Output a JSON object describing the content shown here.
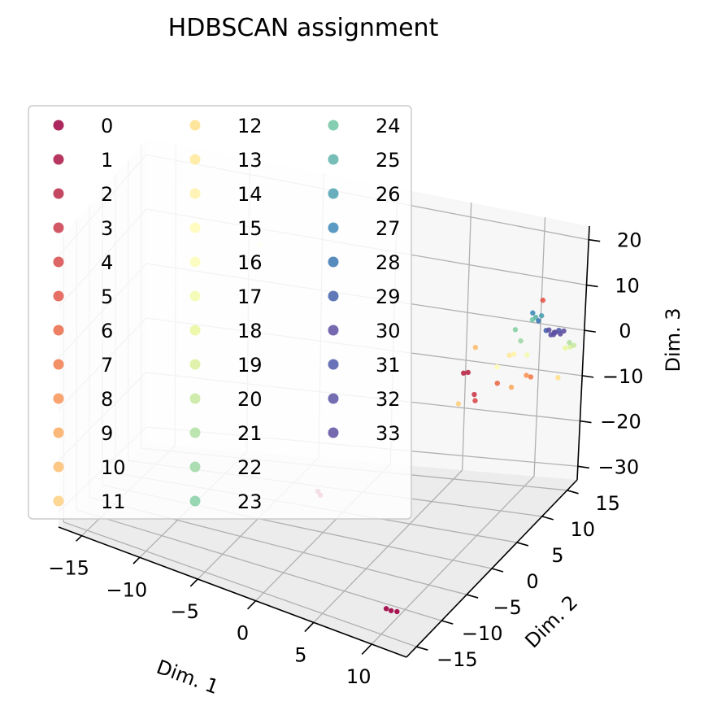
{
  "chart_data": {
    "type": "scatter",
    "projection": "3d",
    "title": "HDBSCAN assignment",
    "xlabel": "Dim. 1",
    "ylabel": "Dim. 2",
    "zlabel": "Dim. 3",
    "x_ticks": [
      "−15",
      "−10",
      "−5",
      "0",
      "5",
      "10"
    ],
    "y_ticks": [
      "−15",
      "−10",
      "−5",
      "0",
      "5",
      "10",
      "15"
    ],
    "z_ticks": [
      "−30",
      "−20",
      "−10",
      "0",
      "10",
      "20"
    ],
    "grid": true,
    "legend_placement": "upper-left",
    "legend_columns": 3,
    "colormap": "Spectral",
    "legend": [
      "0",
      "1",
      "2",
      "3",
      "4",
      "5",
      "6",
      "7",
      "8",
      "9",
      "10",
      "11",
      "12",
      "13",
      "14",
      "15",
      "16",
      "17",
      "18",
      "19",
      "20",
      "21",
      "22",
      "23",
      "24",
      "25",
      "26",
      "27",
      "28",
      "29",
      "30",
      "31",
      "32",
      "33"
    ],
    "colors": [
      "#9e0142",
      "#ac1445",
      "#bb2848",
      "#ca3b4b",
      "#d84a4b",
      "#e2574a",
      "#ea6848",
      "#f27d4c",
      "#f89456",
      "#fbaa63",
      "#fdbe70",
      "#fdd080",
      "#fee08b",
      "#fee999",
      "#fff2a8",
      "#fffab6",
      "#fbfdb9",
      "#f3faac",
      "#eaf79f",
      "#dbf19d",
      "#c7e99e",
      "#b2e0a2",
      "#9dd7a4",
      "#87cfa4",
      "#71c5a5",
      "#5fb3ab",
      "#4da0b1",
      "#3e8ab8",
      "#3a76b1",
      "#4463ab",
      "#5e4fa2",
      "#4f5aaa",
      "#5b54a4",
      "#5e4fa2"
    ],
    "points": [
      {
        "x": 10.5,
        "y": -14.5,
        "z": -28,
        "cluster": 0
      },
      {
        "x": 10.8,
        "y": -14.0,
        "z": -28.5,
        "cluster": 0
      },
      {
        "x": 10.2,
        "y": -14.8,
        "z": -27.5,
        "cluster": 0
      },
      {
        "x": 2.0,
        "y": -10.0,
        "z": -15,
        "cluster": 1
      },
      {
        "x": 2.3,
        "y": -10.2,
        "z": -15.3,
        "cluster": 1
      },
      {
        "x": 9.0,
        "y": 2.0,
        "z": 4,
        "cluster": 2
      },
      {
        "x": 9.3,
        "y": 2.2,
        "z": 4.2,
        "cluster": 2
      },
      {
        "x": 10.2,
        "y": 1.5,
        "z": 1,
        "cluster": 3
      },
      {
        "x": 10.5,
        "y": 1.0,
        "z": 0.5,
        "cluster": 4
      },
      {
        "x": 13.0,
        "y": 8.0,
        "z": 17,
        "cluster": 5
      },
      {
        "x": 11.5,
        "y": 3.0,
        "z": 3,
        "cluster": 6
      },
      {
        "x": 13.5,
        "y": 5.0,
        "z": 4,
        "cluster": 7
      },
      {
        "x": 13.2,
        "y": 4.8,
        "z": 4.3,
        "cluster": 8
      },
      {
        "x": 12.5,
        "y": 3.5,
        "z": 2.5,
        "cluster": 9
      },
      {
        "x": 9.5,
        "y": 3.0,
        "z": 9,
        "cluster": 10
      },
      {
        "x": 9.5,
        "y": 0.0,
        "z": 0,
        "cluster": 11
      },
      {
        "x": 15.0,
        "y": 7.0,
        "z": 3,
        "cluster": 12
      },
      {
        "x": 12.0,
        "y": 4.0,
        "z": 8.5,
        "cluster": 13
      },
      {
        "x": 12.3,
        "y": 4.2,
        "z": 8.8,
        "cluster": 14
      },
      {
        "x": 11.0,
        "y": 4.0,
        "z": 5,
        "cluster": 15
      },
      {
        "x": -12.0,
        "y": 10.0,
        "z": 3,
        "cluster": 16
      },
      {
        "x": 13.5,
        "y": 4.0,
        "z": 10,
        "cluster": 17
      },
      {
        "x": 15.5,
        "y": 7.0,
        "z": 10,
        "cluster": 18
      },
      {
        "x": 15.8,
        "y": 7.3,
        "z": 10.2,
        "cluster": 19
      },
      {
        "x": 16.0,
        "y": 7.5,
        "z": 10.5,
        "cluster": 20
      },
      {
        "x": 15.5,
        "y": 7.8,
        "z": 10.3,
        "cluster": 21
      },
      {
        "x": 12.5,
        "y": 5.0,
        "z": 11,
        "cluster": 22
      },
      {
        "x": 12.0,
        "y": 5.0,
        "z": 13,
        "cluster": 23
      },
      {
        "x": 13.0,
        "y": 6.0,
        "z": 15,
        "cluster": 24
      },
      {
        "x": 13.2,
        "y": 6.2,
        "z": 15.5,
        "cluster": 25
      },
      {
        "x": 13.6,
        "y": 6.4,
        "z": 16,
        "cluster": 26
      },
      {
        "x": 13.0,
        "y": 6.0,
        "z": 16.5,
        "cluster": 27
      },
      {
        "x": 13.4,
        "y": 6.3,
        "z": 14.8,
        "cluster": 28
      },
      {
        "x": 14.0,
        "y": 6.5,
        "z": 13,
        "cluster": 29
      },
      {
        "x": 14.5,
        "y": 7.0,
        "z": 12.5,
        "cluster": 30
      },
      {
        "x": 14.8,
        "y": 7.2,
        "z": 13,
        "cluster": 31
      },
      {
        "x": 14.3,
        "y": 6.8,
        "z": 12,
        "cluster": 32
      },
      {
        "x": 14.6,
        "y": 7.0,
        "z": 12.6,
        "cluster": 33
      },
      {
        "x": 14.9,
        "y": 7.3,
        "z": 12.2,
        "cluster": 33
      },
      {
        "x": 14.2,
        "y": 6.6,
        "z": 13.2,
        "cluster": 33
      },
      {
        "x": 15.1,
        "y": 7.5,
        "z": 12.8,
        "cluster": 33
      },
      {
        "x": 14.4,
        "y": 7.1,
        "z": 11.8,
        "cluster": 33
      }
    ]
  }
}
